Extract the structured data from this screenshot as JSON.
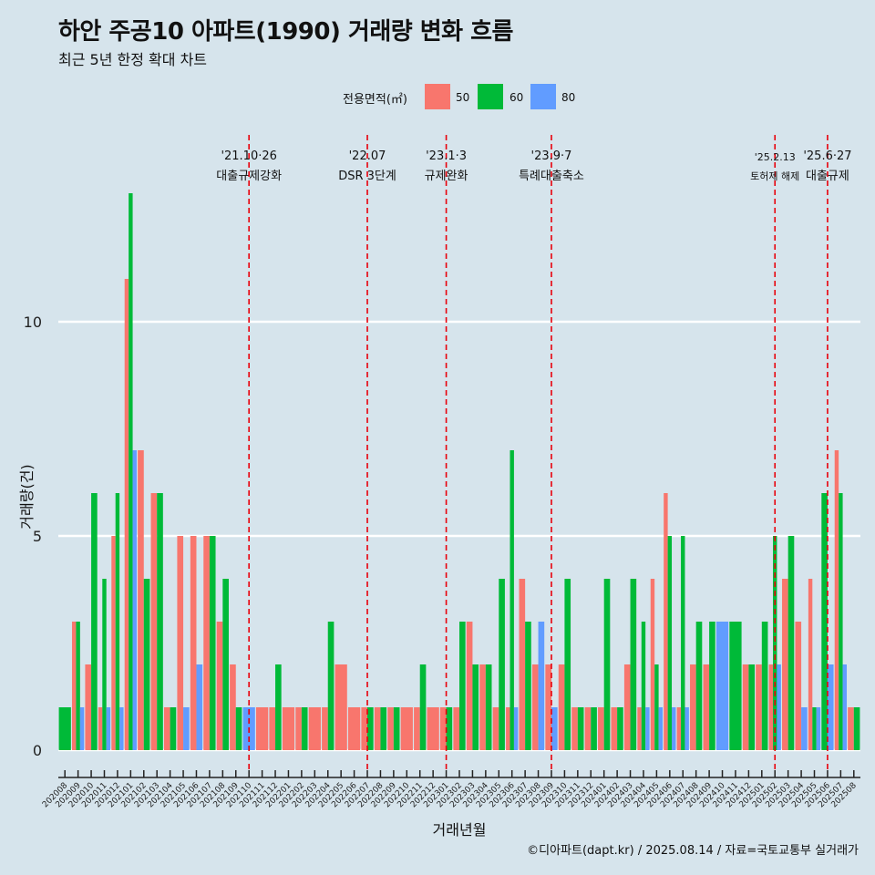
{
  "header": {
    "title": "하안 주공10 아파트(1990) 거래량 변화 흐름",
    "subtitle": "최근 5년 한정 확대 차트"
  },
  "legend": {
    "title": "전용면적(㎡)",
    "entries": [
      {
        "label": "50",
        "color": "#f8766d"
      },
      {
        "label": "60",
        "color": "#00ba38"
      },
      {
        "label": "80",
        "color": "#619cff"
      }
    ]
  },
  "footer": {
    "credit": "©디아파트(dapt.kr) / 2025.08.14 / 자료=국토교통부 실거래가"
  },
  "chart_data": {
    "type": "bar",
    "xlabel": "거래년월",
    "ylabel": "거래량(건)",
    "ylim": [
      0,
      13.5
    ],
    "yticks": [
      0,
      5,
      10
    ],
    "grid": true,
    "legend_position": "top",
    "categories": [
      "202008",
      "202009",
      "202010",
      "202011",
      "202012",
      "202101",
      "202102",
      "202103",
      "202104",
      "202105",
      "202106",
      "202107",
      "202108",
      "202109",
      "202110",
      "202111",
      "202112",
      "202201",
      "202202",
      "202203",
      "202204",
      "202205",
      "202206",
      "202207",
      "202208",
      "202209",
      "202210",
      "202211",
      "202212",
      "202301",
      "202302",
      "202303",
      "202304",
      "202305",
      "202306",
      "202307",
      "202308",
      "202309",
      "202310",
      "202311",
      "202312",
      "202401",
      "202402",
      "202403",
      "202404",
      "202405",
      "202406",
      "202407",
      "202408",
      "202409",
      "202410",
      "202411",
      "202412",
      "202501",
      "202502",
      "202503",
      "202504",
      "202505",
      "202506",
      "202507",
      "202508"
    ],
    "series": [
      {
        "name": "50",
        "color": "#f8766d",
        "values": [
          0,
          3,
          2,
          1,
          5,
          11,
          7,
          6,
          1,
          5,
          5,
          5,
          3,
          2,
          0,
          1,
          1,
          1,
          1,
          1,
          1,
          2,
          1,
          1,
          1,
          1,
          1,
          1,
          1,
          1,
          1,
          3,
          2,
          1,
          1,
          4,
          2,
          2,
          2,
          1,
          1,
          1,
          1,
          2,
          1,
          4,
          6,
          1,
          2,
          2,
          0,
          0,
          2,
          2,
          2,
          4,
          3,
          4,
          0,
          7,
          1
        ]
      },
      {
        "name": "60",
        "color": "#00ba38",
        "values": [
          1,
          3,
          6,
          4,
          6,
          13,
          4,
          6,
          1,
          0,
          0,
          5,
          4,
          1,
          0,
          0,
          2,
          0,
          1,
          0,
          3,
          0,
          0,
          1,
          1,
          1,
          0,
          2,
          0,
          1,
          3,
          2,
          2,
          4,
          7,
          3,
          0,
          0,
          4,
          1,
          1,
          4,
          1,
          4,
          3,
          2,
          5,
          5,
          3,
          3,
          0,
          3,
          2,
          3,
          5,
          5,
          0,
          1,
          6,
          6,
          1
        ]
      },
      {
        "name": "80",
        "color": "#619cff",
        "values": [
          0,
          1,
          0,
          1,
          1,
          7,
          0,
          0,
          0,
          1,
          2,
          0,
          0,
          0,
          1,
          0,
          0,
          0,
          0,
          0,
          0,
          0,
          0,
          0,
          0,
          0,
          0,
          0,
          0,
          0,
          0,
          0,
          0,
          0,
          1,
          0,
          3,
          1,
          0,
          0,
          0,
          0,
          0,
          0,
          1,
          1,
          1,
          1,
          0,
          0,
          3,
          0,
          0,
          0,
          2,
          0,
          1,
          1,
          2,
          2,
          0
        ]
      }
    ],
    "annotations": [
      {
        "category": "202110",
        "date": "'21.10·26",
        "text": "대출규제강화"
      },
      {
        "category": "202207",
        "date": "'22.07",
        "text": "DSR 3단계"
      },
      {
        "category": "202301",
        "date": "'23.1·3",
        "text": "규제완화"
      },
      {
        "category": "202309",
        "date": "'23.9·7",
        "text": "특례대출축소"
      },
      {
        "category": "202502",
        "date": "'25.2.13",
        "text": "토허제 해제"
      },
      {
        "category": "202506",
        "date": "'25.6·27",
        "text": "대출규제"
      }
    ]
  }
}
